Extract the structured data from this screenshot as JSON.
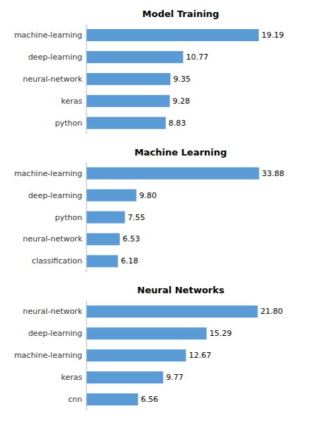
{
  "chart_data": [
    {
      "type": "bar",
      "orientation": "horizontal",
      "title": "Model Training",
      "categories": [
        "machine-learning",
        "deep-learning",
        "neural-network",
        "keras",
        "python"
      ],
      "values": [
        19.19,
        10.77,
        9.35,
        9.28,
        8.83
      ],
      "value_labels": [
        "19.19",
        "10.77",
        "9.35",
        "9.28",
        "8.83"
      ],
      "xlim": [
        0,
        21.0
      ],
      "color": "#5b9bd5",
      "data_labels": true,
      "tick_labels": "y"
    },
    {
      "type": "bar",
      "orientation": "horizontal",
      "title": "Machine Learning",
      "categories": [
        "machine-learning",
        "deep-learning",
        "python",
        "neural-network",
        "classification"
      ],
      "values": [
        33.88,
        9.8,
        7.55,
        6.53,
        6.18
      ],
      "value_labels": [
        "33.88",
        "9.80",
        "7.55",
        "6.53",
        "6.18"
      ],
      "xlim": [
        0,
        37.0
      ],
      "color": "#5b9bd5",
      "data_labels": true,
      "tick_labels": "y"
    },
    {
      "type": "bar",
      "orientation": "horizontal",
      "title": "Neural Networks",
      "categories": [
        "neural-network",
        "deep-learning",
        "machine-learning",
        "keras",
        "cnn"
      ],
      "values": [
        21.8,
        15.29,
        12.67,
        9.77,
        6.56
      ],
      "value_labels": [
        "21.80",
        "15.29",
        "12.67",
        "9.77",
        "6.56"
      ],
      "xlim": [
        0,
        24.0
      ],
      "color": "#5b9bd5",
      "data_labels": true,
      "tick_labels": "y"
    }
  ]
}
